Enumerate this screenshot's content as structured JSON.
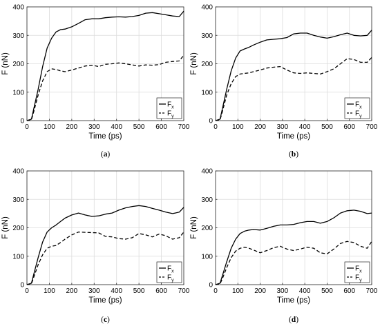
{
  "chart_data": [
    {
      "type": "line",
      "panel": "a",
      "caption_letter": "a",
      "xlabel": "Time (ps)",
      "ylabel": "F (nN)",
      "xlim": [
        0,
        700
      ],
      "ylim": [
        0,
        400
      ],
      "xticks": [
        0,
        100,
        200,
        300,
        400,
        500,
        600,
        700
      ],
      "yticks": [
        0,
        100,
        200,
        300,
        400
      ],
      "grid": true,
      "legend_position": "bottom-right",
      "series": [
        {
          "name": "F",
          "sub": "x",
          "style": "solid",
          "x": [
            0,
            20,
            30,
            50,
            70,
            90,
            110,
            130,
            150,
            170,
            200,
            230,
            260,
            290,
            320,
            350,
            380,
            410,
            440,
            470,
            500,
            530,
            560,
            590,
            620,
            650,
            680,
            700
          ],
          "y": [
            0,
            5,
            40,
            110,
            190,
            255,
            290,
            312,
            320,
            322,
            330,
            342,
            355,
            358,
            358,
            362,
            364,
            365,
            364,
            366,
            370,
            378,
            380,
            376,
            372,
            368,
            366,
            385
          ]
        },
        {
          "name": "F",
          "sub": "y",
          "style": "dashed",
          "x": [
            0,
            20,
            30,
            50,
            70,
            90,
            110,
            130,
            150,
            170,
            200,
            230,
            260,
            290,
            320,
            350,
            380,
            410,
            440,
            470,
            500,
            530,
            560,
            590,
            620,
            650,
            680,
            700
          ],
          "y": [
            0,
            3,
            30,
            90,
            140,
            172,
            182,
            180,
            175,
            172,
            178,
            185,
            192,
            195,
            190,
            198,
            200,
            203,
            200,
            196,
            192,
            196,
            195,
            197,
            205,
            208,
            210,
            230
          ]
        }
      ]
    },
    {
      "type": "line",
      "panel": "b",
      "caption_letter": "b",
      "xlabel": "Time (ps)",
      "ylabel": "F (nN)",
      "xlim": [
        0,
        700
      ],
      "ylim": [
        0,
        400
      ],
      "xticks": [
        0,
        100,
        200,
        300,
        400,
        500,
        600,
        700
      ],
      "yticks": [
        0,
        100,
        200,
        300,
        400
      ],
      "grid": true,
      "legend_position": "bottom-right",
      "series": [
        {
          "name": "F",
          "sub": "x",
          "style": "solid",
          "x": [
            0,
            20,
            30,
            50,
            70,
            90,
            110,
            130,
            150,
            170,
            200,
            230,
            260,
            290,
            320,
            350,
            380,
            410,
            440,
            470,
            500,
            530,
            560,
            590,
            620,
            650,
            680,
            700
          ],
          "y": [
            0,
            5,
            40,
            110,
            175,
            220,
            245,
            252,
            258,
            266,
            276,
            284,
            286,
            288,
            292,
            305,
            308,
            308,
            300,
            294,
            290,
            295,
            302,
            308,
            300,
            298,
            300,
            318
          ]
        },
        {
          "name": "F",
          "sub": "y",
          "style": "dashed",
          "x": [
            0,
            20,
            30,
            50,
            70,
            90,
            110,
            130,
            150,
            170,
            200,
            230,
            260,
            290,
            320,
            350,
            380,
            410,
            440,
            470,
            500,
            530,
            560,
            590,
            620,
            650,
            680,
            700
          ],
          "y": [
            0,
            3,
            30,
            90,
            130,
            155,
            164,
            166,
            168,
            172,
            178,
            185,
            188,
            190,
            178,
            168,
            166,
            168,
            166,
            164,
            172,
            182,
            200,
            218,
            215,
            205,
            205,
            222
          ]
        }
      ]
    },
    {
      "type": "line",
      "panel": "c",
      "caption_letter": "c",
      "xlabel": "Time (ps)",
      "ylabel": "F (nN)",
      "xlim": [
        0,
        700
      ],
      "ylim": [
        0,
        400
      ],
      "xticks": [
        0,
        100,
        200,
        300,
        400,
        500,
        600,
        700
      ],
      "yticks": [
        0,
        100,
        200,
        300,
        400
      ],
      "grid": true,
      "legend_position": "bottom-right",
      "series": [
        {
          "name": "F",
          "sub": "x",
          "style": "solid",
          "x": [
            0,
            20,
            30,
            50,
            70,
            90,
            110,
            130,
            150,
            170,
            200,
            230,
            260,
            290,
            320,
            350,
            380,
            410,
            440,
            470,
            500,
            530,
            560,
            590,
            620,
            650,
            680,
            700
          ],
          "y": [
            0,
            5,
            35,
            95,
            150,
            185,
            200,
            210,
            222,
            234,
            245,
            252,
            245,
            240,
            242,
            248,
            252,
            262,
            270,
            275,
            278,
            275,
            268,
            262,
            255,
            250,
            255,
            272
          ]
        },
        {
          "name": "F",
          "sub": "y",
          "style": "dashed",
          "x": [
            0,
            20,
            30,
            50,
            70,
            90,
            110,
            130,
            150,
            170,
            200,
            230,
            260,
            290,
            320,
            350,
            380,
            410,
            440,
            470,
            500,
            530,
            560,
            590,
            620,
            650,
            680,
            700
          ],
          "y": [
            0,
            3,
            25,
            70,
            105,
            128,
            135,
            138,
            148,
            160,
            175,
            185,
            184,
            183,
            182,
            170,
            168,
            162,
            160,
            165,
            180,
            175,
            168,
            178,
            172,
            160,
            165,
            185
          ]
        }
      ]
    },
    {
      "type": "line",
      "panel": "d",
      "caption_letter": "d",
      "xlabel": "Time (ps)",
      "ylabel": "F (nN)",
      "xlim": [
        0,
        700
      ],
      "ylim": [
        0,
        400
      ],
      "xticks": [
        0,
        100,
        200,
        300,
        400,
        500,
        600,
        700
      ],
      "yticks": [
        0,
        100,
        200,
        300,
        400
      ],
      "grid": true,
      "legend_position": "bottom-right",
      "series": [
        {
          "name": "F",
          "sub": "x",
          "style": "solid",
          "x": [
            0,
            20,
            30,
            50,
            70,
            90,
            110,
            130,
            150,
            170,
            200,
            230,
            260,
            290,
            320,
            350,
            380,
            410,
            440,
            470,
            500,
            530,
            560,
            590,
            620,
            650,
            680,
            700
          ],
          "y": [
            0,
            5,
            30,
            80,
            128,
            160,
            180,
            188,
            192,
            194,
            192,
            198,
            205,
            210,
            210,
            212,
            218,
            222,
            222,
            216,
            222,
            235,
            252,
            260,
            262,
            258,
            250,
            252
          ]
        },
        {
          "name": "F",
          "sub": "y",
          "style": "dashed",
          "x": [
            0,
            20,
            30,
            50,
            70,
            90,
            110,
            130,
            150,
            170,
            200,
            230,
            260,
            290,
            320,
            350,
            380,
            410,
            440,
            470,
            500,
            530,
            560,
            590,
            620,
            650,
            680,
            700
          ],
          "y": [
            0,
            3,
            20,
            60,
            95,
            118,
            128,
            132,
            128,
            122,
            112,
            120,
            130,
            135,
            125,
            120,
            125,
            132,
            128,
            112,
            108,
            125,
            145,
            152,
            148,
            135,
            128,
            152
          ]
        }
      ]
    }
  ]
}
